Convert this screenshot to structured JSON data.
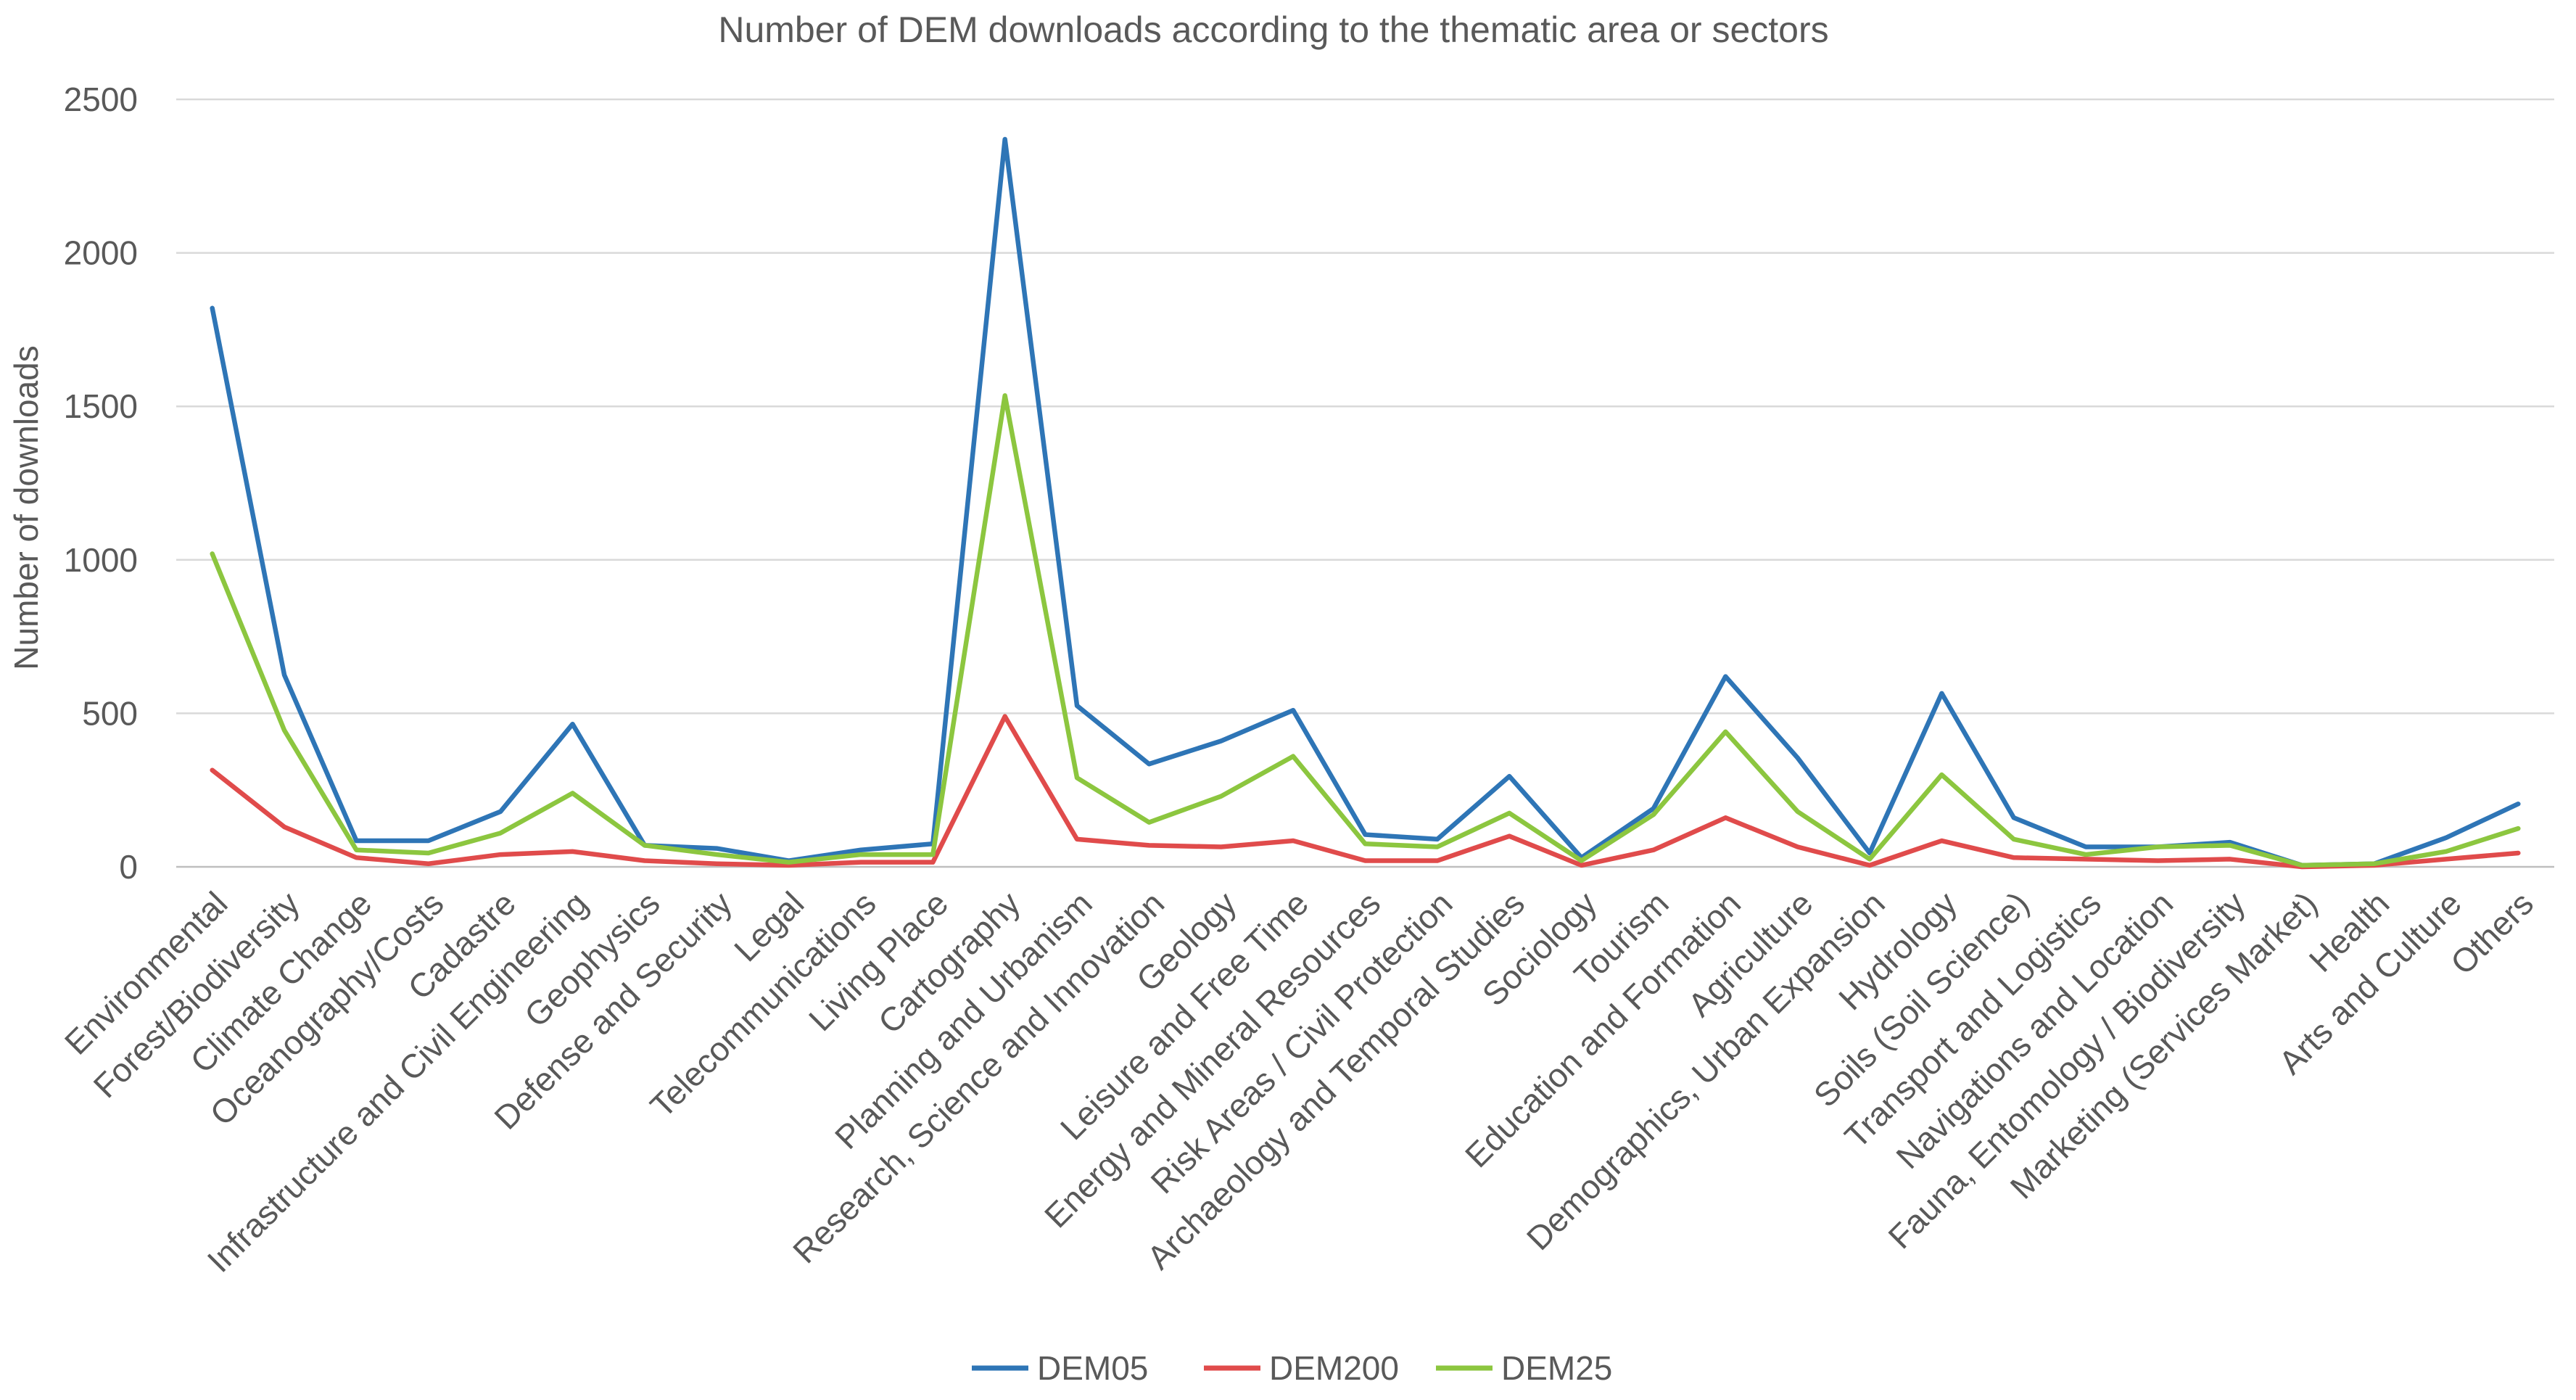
{
  "chart_data": {
    "type": "line",
    "title": "Number of DEM downloads according to the thematic area or sectors",
    "xlabel": "",
    "ylabel": "Number of  downloads",
    "ylim": [
      0,
      2500
    ],
    "yticks": [
      0,
      500,
      1000,
      1500,
      2000,
      2500
    ],
    "grid": true,
    "legend_position": "bottom",
    "categories": [
      "Environmental",
      "Forest/Biodiversity",
      "Climate Change",
      "Oceanography/Costs",
      "Cadastre",
      "Infrastructure and Civil Engineering",
      "Geophysics",
      "Defense and Security",
      "Legal",
      "Telecommunications",
      "Living Place",
      "Cartography",
      "Planning and Urbanism",
      "Research, Science and Innovation",
      "Geology",
      "Leisure and Free Time",
      "Energy and Mineral Resources",
      "Risk Areas / Civil Protection",
      "Archaeology and Temporal Studies",
      "Sociology",
      "Tourism",
      "Education and Formation",
      "Agriculture",
      "Demographics, Urban Expansion",
      "Hydrology",
      "Soils (Soil Science)",
      "Transport and Logistics",
      "Navigations and Location",
      "Fauna, Entomology / Biodiversity",
      "Marketing (Services Market)",
      "Health",
      "Arts and Culture",
      "Others"
    ],
    "series": [
      {
        "name": "DEM05",
        "color": "#2e75b6",
        "values": [
          1820,
          625,
          85,
          85,
          180,
          465,
          70,
          60,
          20,
          55,
          75,
          2370,
          525,
          335,
          410,
          510,
          105,
          90,
          295,
          30,
          190,
          620,
          355,
          45,
          565,
          160,
          65,
          65,
          80,
          5,
          10,
          95,
          205
        ]
      },
      {
        "name": "DEM200",
        "color": "#e04b4b",
        "values": [
          315,
          130,
          30,
          10,
          40,
          50,
          20,
          10,
          5,
          15,
          15,
          490,
          90,
          70,
          65,
          85,
          20,
          20,
          100,
          5,
          55,
          160,
          65,
          5,
          85,
          30,
          25,
          20,
          25,
          0,
          5,
          25,
          45
        ]
      },
      {
        "name": "DEM25",
        "color": "#8cc63f",
        "values": [
          1020,
          445,
          55,
          45,
          110,
          240,
          70,
          40,
          15,
          40,
          40,
          1535,
          290,
          145,
          230,
          360,
          75,
          65,
          175,
          20,
          170,
          440,
          180,
          25,
          300,
          90,
          40,
          65,
          70,
          5,
          10,
          50,
          125
        ]
      }
    ]
  }
}
